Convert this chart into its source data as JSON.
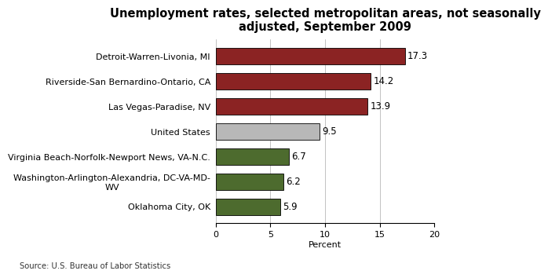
{
  "title": "Unemployment rates, selected metropolitan areas, not seasonally\nadjusted, September 2009",
  "categories": [
    "Oklahoma City, OK",
    "Washington-Arlington-Alexandria, DC-VA-MD-\nWV",
    "Virginia Beach-Norfolk-Newport News, VA-N.C.",
    "United States",
    "Las Vegas-Paradise, NV",
    "Riverside-San Bernardino-Ontario, CA",
    "Detroit-Warren-Livonia, MI"
  ],
  "values": [
    5.9,
    6.2,
    6.7,
    9.5,
    13.9,
    14.2,
    17.3
  ],
  "colors": [
    "#4d6b2e",
    "#4d6b2e",
    "#4d6b2e",
    "#b8b8b8",
    "#8b2323",
    "#8b2323",
    "#8b2323"
  ],
  "xlim": [
    0,
    20
  ],
  "xticks": [
    0,
    5,
    10,
    15,
    20
  ],
  "xlabel": "Percent",
  "source": "Source: U.S. Bureau of Labor Statistics",
  "label_fontsize": 8.0,
  "title_fontsize": 10.5,
  "value_fontsize": 8.5,
  "bar_height": 0.65
}
